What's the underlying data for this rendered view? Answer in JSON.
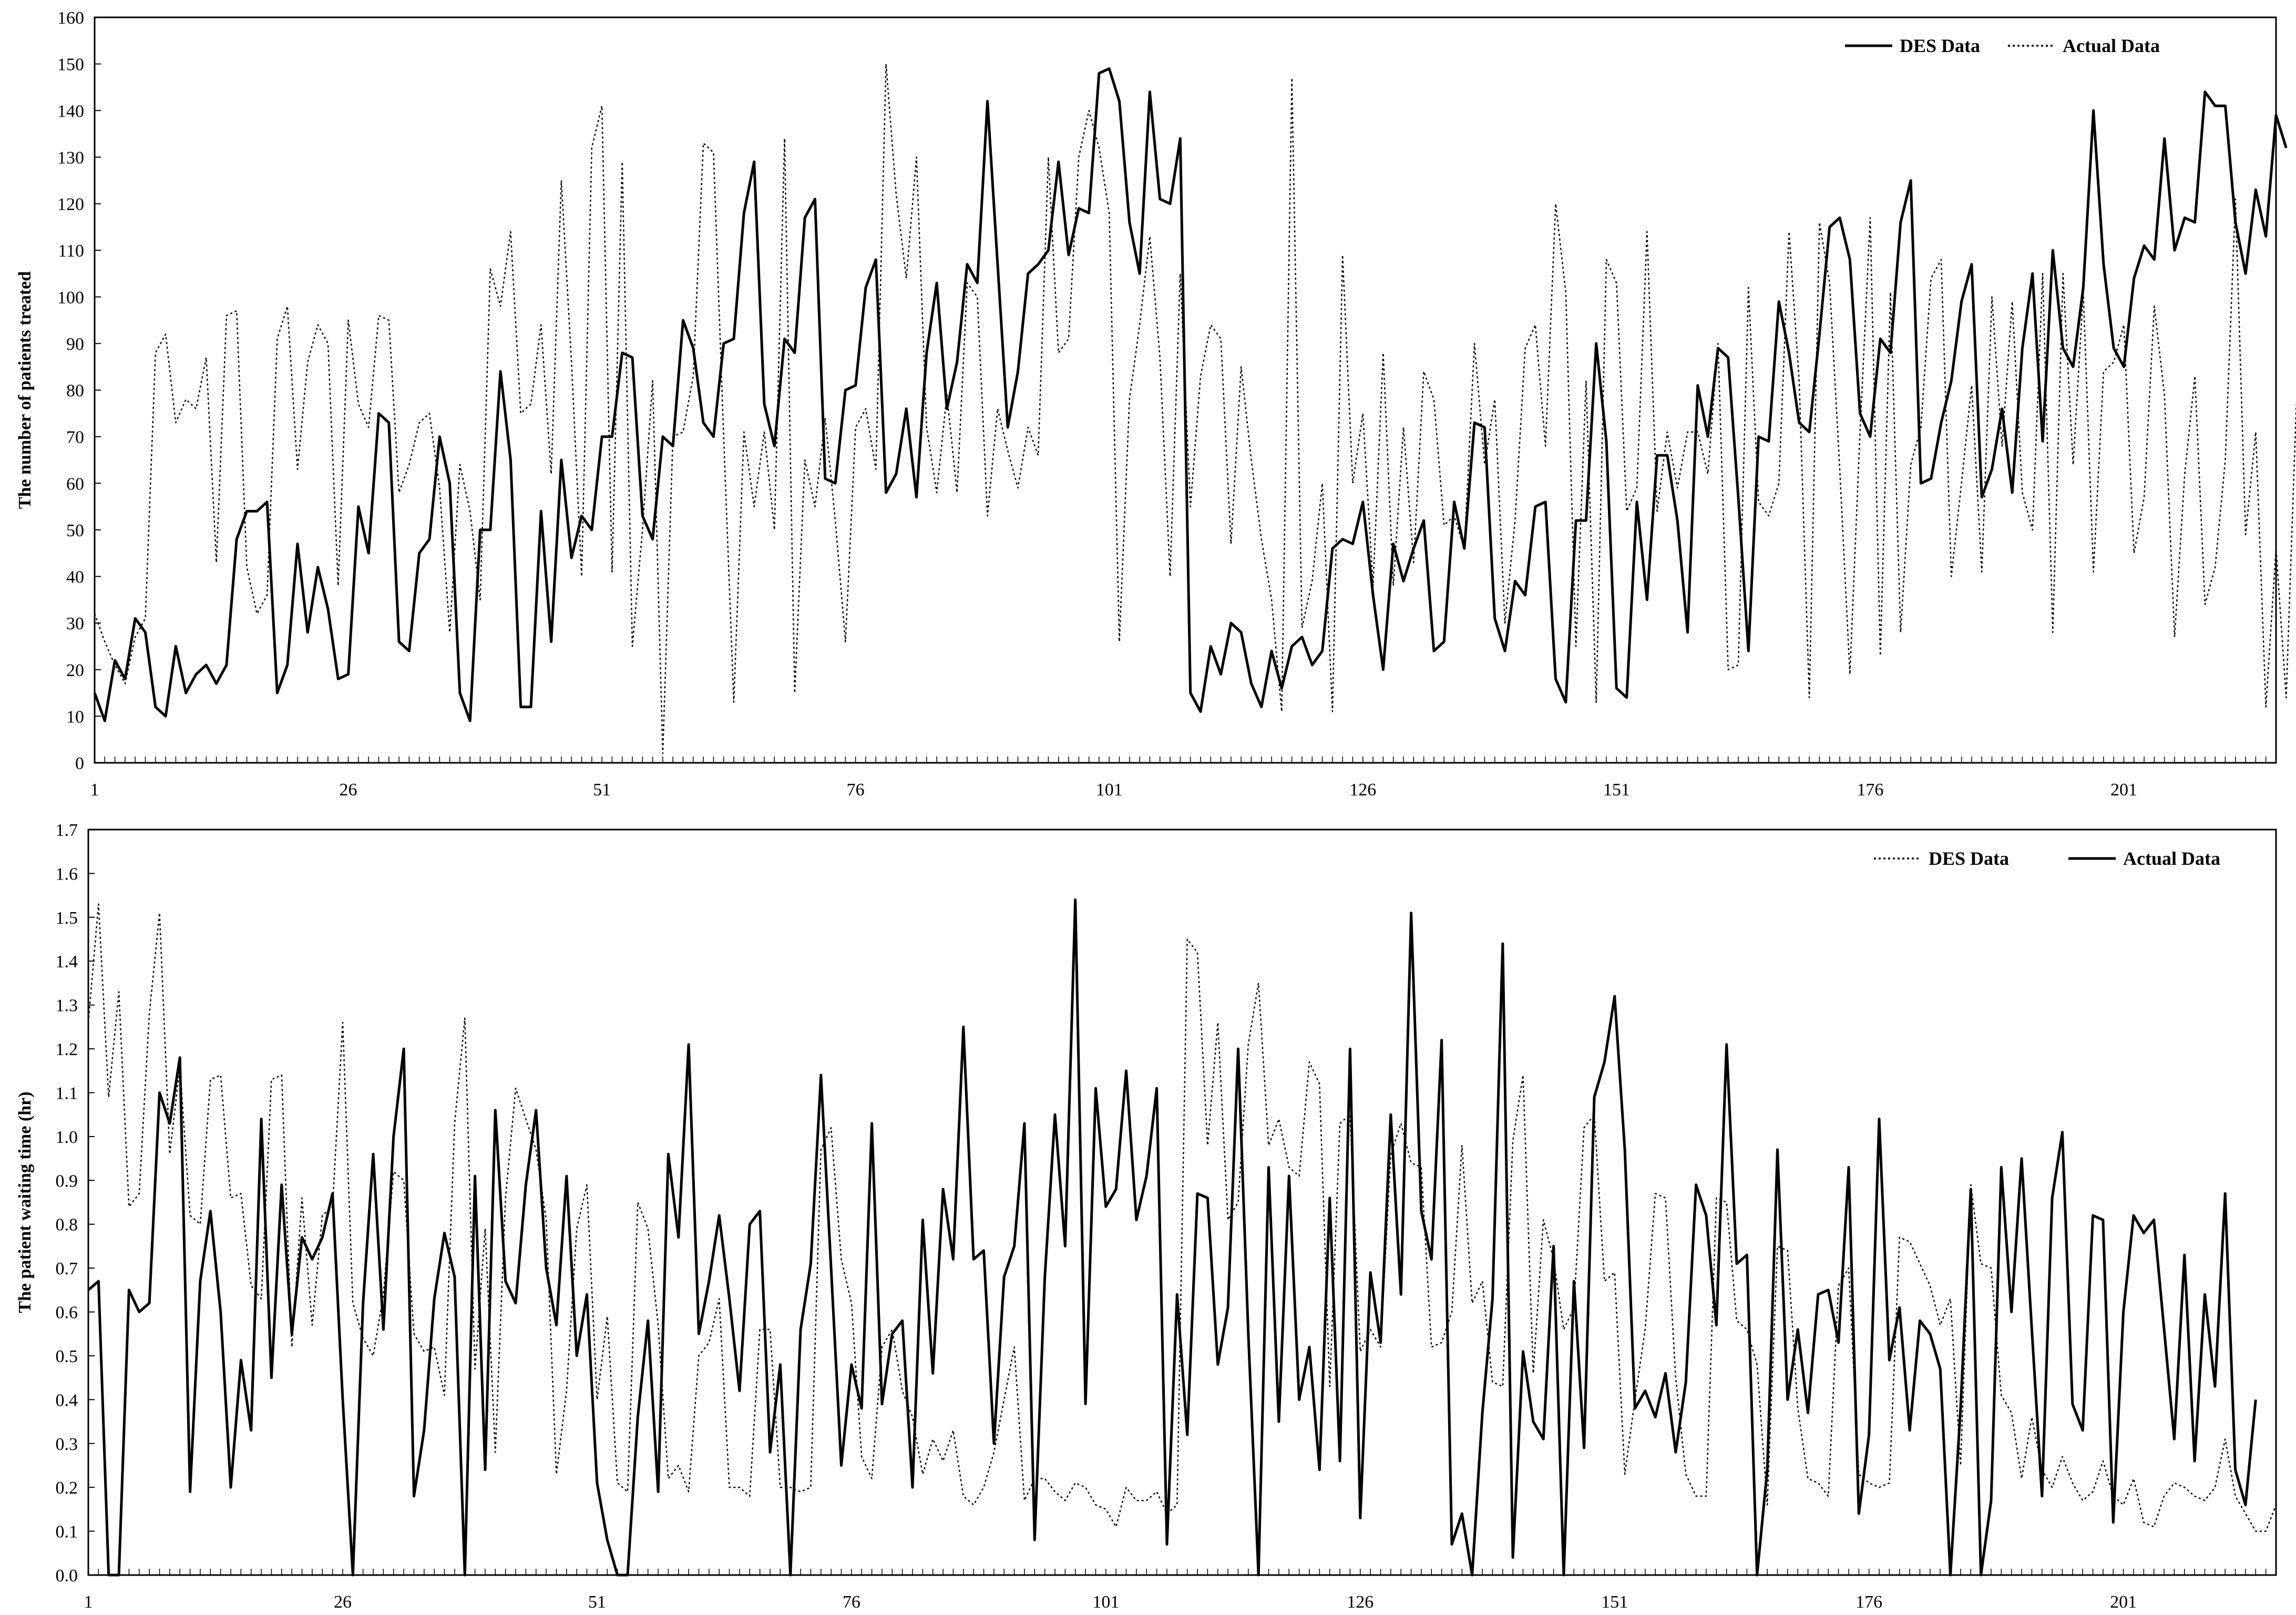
{
  "chart_data": [
    {
      "type": "line",
      "title": "",
      "xlabel": "",
      "ylabel": "The number of patients treated",
      "xlim": [
        1,
        216
      ],
      "ylim": [
        0,
        160
      ],
      "y_ticks": [
        "0",
        "10",
        "20",
        "30",
        "40",
        "50",
        "60",
        "70",
        "80",
        "90",
        "100",
        "110",
        "120",
        "130",
        "140",
        "150",
        "160"
      ],
      "x_ticks": [
        "1",
        "26",
        "51",
        "76",
        "101",
        "126",
        "151",
        "176",
        "201"
      ],
      "x_tick_values": [
        1,
        26,
        51,
        76,
        101,
        126,
        151,
        176,
        201
      ],
      "grid": false,
      "legend_position": "top-right",
      "legend": [
        {
          "label": "DES Data",
          "style": "solid"
        },
        {
          "label": "Actual Data",
          "style": "dotted"
        }
      ],
      "x": "1..216 (day index)",
      "series": [
        {
          "name": "DES Data",
          "style": "solid",
          "values": [
            15,
            9,
            22,
            18,
            31,
            28,
            12,
            10,
            25,
            15,
            19,
            21,
            17,
            21,
            48,
            54,
            54,
            56,
            15,
            21,
            47,
            28,
            42,
            33,
            18,
            19,
            55,
            45,
            75,
            73,
            26,
            24,
            45,
            48,
            70,
            60,
            15,
            9,
            50,
            50,
            84,
            65,
            12,
            12,
            54,
            26,
            65,
            44,
            53,
            50,
            70,
            70,
            88,
            87,
            53,
            48,
            70,
            68,
            95,
            89,
            73,
            70,
            90,
            91,
            118,
            129,
            77,
            68,
            91,
            88,
            117,
            121,
            61,
            60,
            80,
            81,
            102,
            108,
            58,
            62,
            76,
            57,
            88,
            103,
            76,
            86,
            107,
            103,
            142,
            107,
            72,
            84,
            105,
            107,
            110,
            129,
            109,
            119,
            118,
            148,
            149,
            142,
            116,
            105,
            144,
            121,
            120,
            134,
            15,
            11,
            25,
            19,
            30,
            28,
            17,
            12,
            24,
            16,
            25,
            27,
            21,
            24,
            46,
            48,
            47,
            56,
            36,
            20,
            47,
            39,
            46,
            52,
            24,
            26,
            56,
            46,
            73,
            72,
            31,
            24,
            39,
            36,
            55,
            56,
            18,
            13,
            52,
            52,
            90,
            69,
            16,
            14,
            56,
            35,
            66,
            66,
            52,
            28,
            81,
            70,
            89,
            87,
            57,
            24,
            70,
            69,
            99,
            88,
            73,
            71,
            92,
            115,
            117,
            108,
            75,
            70,
            91,
            88,
            116,
            125,
            60,
            61,
            73,
            82,
            99,
            107,
            57,
            63,
            76,
            58,
            89,
            105,
            69,
            110,
            89,
            85,
            102,
            140,
            107,
            89,
            85,
            104,
            111,
            108,
            134,
            110,
            117,
            116,
            144,
            141,
            141,
            116,
            105,
            123,
            113,
            139,
            132
          ]
        },
        {
          "name": "Actual Data",
          "style": "dotted",
          "values": [
            32,
            26,
            21,
            17,
            27,
            31,
            88,
            92,
            73,
            78,
            76,
            87,
            43,
            96,
            97,
            42,
            32,
            36,
            91,
            98,
            63,
            86,
            94,
            90,
            38,
            95,
            77,
            72,
            96,
            95,
            58,
            64,
            73,
            75,
            59,
            28,
            64,
            54,
            35,
            106,
            98,
            114,
            75,
            77,
            94,
            62,
            125,
            86,
            40,
            132,
            141,
            41,
            129,
            25,
            50,
            82,
            2,
            70,
            71,
            83,
            133,
            131,
            70,
            13,
            71,
            55,
            71,
            50,
            134,
            15,
            65,
            55,
            74,
            52,
            26,
            72,
            76,
            63,
            150,
            122,
            104,
            130,
            72,
            58,
            79,
            58,
            103,
            100,
            53,
            76,
            67,
            59,
            72,
            66,
            130,
            88,
            91,
            130,
            140,
            132,
            118,
            26,
            78,
            94,
            113,
            87,
            40,
            105,
            55,
            83,
            94,
            91,
            47,
            85,
            65,
            48,
            35,
            11,
            147,
            29,
            39,
            60,
            11,
            109,
            60,
            75,
            38,
            88,
            38,
            72,
            43,
            84,
            78,
            51,
            53,
            46,
            90,
            64,
            78,
            30,
            52,
            89,
            94,
            68,
            120,
            101,
            25,
            82,
            13,
            108,
            103,
            54,
            59,
            114,
            54,
            71,
            59,
            71,
            71,
            62,
            90,
            20,
            21,
            102,
            56,
            53,
            60,
            114,
            82,
            14,
            116,
            103,
            63,
            19,
            71,
            117,
            23,
            101,
            28,
            64,
            72,
            104,
            108,
            40,
            60,
            81,
            41,
            100,
            68,
            99,
            58,
            50,
            105,
            28,
            105,
            64,
            101,
            41,
            84,
            86,
            94,
            45,
            57,
            98,
            79,
            27,
            62,
            83,
            34,
            42,
            65,
            121,
            49,
            71,
            12,
            46,
            14,
            77
          ]
        }
      ]
    },
    {
      "type": "line",
      "title": "",
      "xlabel": "",
      "ylabel": "The patient waiting time (hr)",
      "xlim": [
        1,
        216
      ],
      "ylim": [
        0.0,
        1.7
      ],
      "y_ticks": [
        "0.0",
        "0.1",
        "0.2",
        "0.3",
        "0.4",
        "0.5",
        "0.6",
        "0.7",
        "0.8",
        "0.9",
        "1.0",
        "1.1",
        "1.2",
        "1.3",
        "1.4",
        "1.5",
        "1.6",
        "1.7"
      ],
      "x_ticks": [
        "1",
        "26",
        "51",
        "76",
        "101",
        "126",
        "151",
        "176",
        "201"
      ],
      "x_tick_values": [
        1,
        26,
        51,
        76,
        101,
        126,
        151,
        176,
        201
      ],
      "grid": false,
      "legend_position": "top-right",
      "legend": [
        {
          "label": "DES Data",
          "style": "dotted"
        },
        {
          "label": "Actual Data",
          "style": "solid"
        }
      ],
      "x": "1..216 (day index)",
      "series": [
        {
          "name": "DES Data",
          "style": "dotted",
          "values": [
            1.26,
            1.53,
            1.09,
            1.33,
            0.84,
            0.87,
            1.28,
            1.51,
            0.96,
            1.16,
            0.82,
            0.8,
            1.13,
            1.14,
            0.86,
            0.87,
            0.66,
            0.63,
            1.13,
            1.14,
            0.52,
            0.86,
            0.57,
            0.82,
            0.84,
            1.26,
            0.62,
            0.54,
            0.5,
            0.64,
            0.92,
            0.9,
            0.55,
            0.51,
            0.52,
            0.41,
            1.03,
            1.27,
            0.47,
            0.79,
            0.28,
            0.86,
            1.11,
            1.04,
            0.97,
            0.81,
            0.23,
            0.42,
            0.79,
            0.89,
            0.4,
            0.59,
            0.21,
            0.19,
            0.85,
            0.79,
            0.57,
            0.22,
            0.25,
            0.19,
            0.5,
            0.53,
            0.63,
            0.2,
            0.2,
            0.18,
            0.56,
            0.56,
            0.2,
            0.2,
            0.19,
            0.2,
            0.97,
            1.02,
            0.72,
            0.62,
            0.27,
            0.22,
            0.52,
            0.56,
            0.42,
            0.36,
            0.23,
            0.31,
            0.26,
            0.33,
            0.18,
            0.16,
            0.2,
            0.28,
            0.4,
            0.52,
            0.17,
            0.22,
            0.22,
            0.19,
            0.17,
            0.21,
            0.2,
            0.16,
            0.15,
            0.11,
            0.2,
            0.17,
            0.17,
            0.19,
            0.14,
            0.16,
            1.45,
            1.42,
            0.98,
            1.26,
            0.81,
            0.85,
            1.21,
            1.35,
            0.98,
            1.04,
            0.93,
            0.91,
            1.17,
            1.12,
            0.43,
            1.03,
            1.05,
            0.51,
            0.56,
            0.52,
            0.96,
            1.03,
            0.94,
            0.93,
            0.52,
            0.53,
            0.6,
            0.98,
            0.62,
            0.67,
            0.44,
            0.43,
            0.99,
            1.14,
            0.46,
            0.81,
            0.72,
            0.56,
            0.61,
            1.02,
            1.05,
            0.67,
            0.69,
            0.23,
            0.4,
            0.56,
            0.87,
            0.86,
            0.45,
            0.23,
            0.18,
            0.18,
            0.86,
            0.85,
            0.58,
            0.56,
            0.48,
            0.16,
            0.75,
            0.74,
            0.38,
            0.22,
            0.21,
            0.18,
            0.66,
            0.7,
            0.23,
            0.21,
            0.2,
            0.21,
            0.77,
            0.76,
            0.71,
            0.66,
            0.57,
            0.63,
            0.25,
            0.89,
            0.71,
            0.7,
            0.41,
            0.37,
            0.22,
            0.36,
            0.24,
            0.2,
            0.27,
            0.21,
            0.17,
            0.19,
            0.26,
            0.18,
            0.16,
            0.22,
            0.12,
            0.11,
            0.18,
            0.21,
            0.2,
            0.18,
            0.17,
            0.2,
            0.31,
            0.18,
            0.14,
            0.1,
            0.1,
            0.16
          ]
        },
        {
          "name": "Actual Data",
          "style": "solid",
          "values": [
            0.65,
            0.67,
            0.0,
            0.0,
            0.65,
            0.6,
            0.62,
            1.1,
            1.03,
            1.18,
            0.19,
            0.67,
            0.83,
            0.6,
            0.2,
            0.49,
            0.33,
            1.04,
            0.45,
            0.89,
            0.55,
            0.77,
            0.72,
            0.77,
            0.87,
            0.4,
            0.0,
            0.62,
            0.96,
            0.56,
            1.0,
            1.2,
            0.18,
            0.33,
            0.63,
            0.78,
            0.68,
            0.0,
            0.91,
            0.24,
            1.06,
            0.67,
            0.62,
            0.89,
            1.06,
            0.7,
            0.57,
            0.91,
            0.5,
            0.64,
            0.21,
            0.08,
            0.0,
            0.0,
            0.36,
            0.58,
            0.19,
            0.96,
            0.77,
            1.21,
            0.55,
            0.67,
            0.82,
            0.63,
            0.42,
            0.8,
            0.83,
            0.28,
            0.48,
            0.0,
            0.56,
            0.71,
            1.14,
            0.7,
            0.25,
            0.48,
            0.38,
            1.03,
            0.39,
            0.55,
            0.58,
            0.2,
            0.81,
            0.46,
            0.88,
            0.72,
            1.25,
            0.72,
            0.74,
            0.3,
            0.68,
            0.75,
            1.03,
            0.08,
            0.68,
            1.05,
            0.75,
            1.54,
            0.39,
            1.11,
            0.84,
            0.88,
            1.15,
            0.81,
            0.91,
            1.11,
            0.07,
            0.64,
            0.32,
            0.87,
            0.86,
            0.48,
            0.61,
            1.2,
            0.55,
            0.0,
            0.93,
            0.35,
            0.91,
            0.4,
            0.52,
            0.24,
            0.86,
            0.26,
            1.2,
            0.13,
            0.69,
            0.53,
            1.05,
            0.64,
            1.51,
            0.83,
            0.72,
            1.22,
            0.07,
            0.14,
            0.0,
            0.37,
            0.63,
            1.44,
            0.04,
            0.51,
            0.35,
            0.31,
            0.75,
            0.0,
            0.67,
            0.29,
            1.09,
            1.17,
            1.32,
            0.97,
            0.38,
            0.42,
            0.36,
            0.46,
            0.28,
            0.44,
            0.89,
            0.82,
            0.57,
            1.21,
            0.71,
            0.73,
            0.0,
            0.24,
            0.97,
            0.4,
            0.56,
            0.37,
            0.64,
            0.65,
            0.53,
            0.93,
            0.14,
            0.32,
            1.04,
            0.49,
            0.61,
            0.33,
            0.58,
            0.55,
            0.47,
            0.0,
            0.38,
            0.88,
            0.0,
            0.17,
            0.93,
            0.6,
            0.95,
            0.56,
            0.18,
            0.86,
            1.01,
            0.39,
            0.33,
            0.82,
            0.81,
            0.12,
            0.6,
            0.82,
            0.78,
            0.81,
            0.56,
            0.31,
            0.73,
            0.26,
            0.64,
            0.43,
            0.87,
            0.24,
            0.16,
            0.4
          ]
        }
      ]
    }
  ]
}
